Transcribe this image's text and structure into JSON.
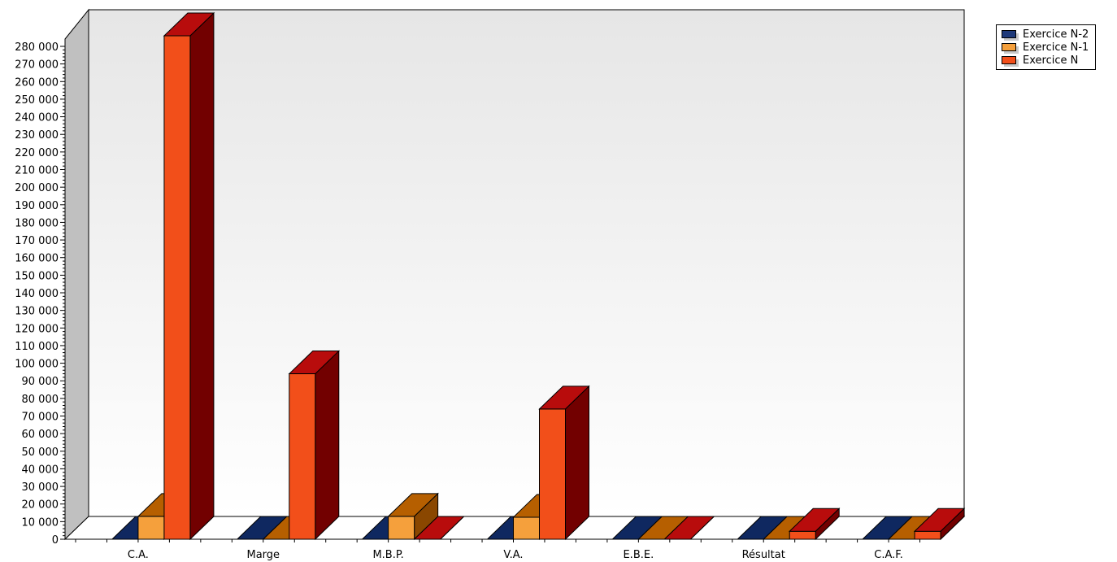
{
  "chart_data": {
    "type": "bar",
    "categories": [
      "C.A.",
      "Marge",
      "M.B.P.",
      "V.A.",
      "E.B.E.",
      "Résultat",
      "C.A.F."
    ],
    "series": [
      {
        "name": "Exercice N-2",
        "values": [
          0,
          0,
          0,
          0,
          0,
          0,
          0
        ],
        "color": "#1f3a7a"
      },
      {
        "name": "Exercice N-1",
        "values": [
          13000,
          0,
          13000,
          12500,
          0,
          -500,
          -500
        ],
        "color": "#f5a03c"
      },
      {
        "name": "Exercice N",
        "values": [
          286000,
          94000,
          0,
          74000,
          0,
          4500,
          4500
        ],
        "color": "#f24f1a"
      }
    ],
    "ylim": [
      0,
      280000
    ],
    "ytick_step": 10000,
    "yticks": [
      "0",
      "10 000",
      "20 000",
      "30 000",
      "40 000",
      "50 000",
      "60 000",
      "70 000",
      "80 000",
      "90 000",
      "100 000",
      "110 000",
      "120 000",
      "130 000",
      "140 000",
      "150 000",
      "160 000",
      "170 000",
      "180 000",
      "190 000",
      "200 000",
      "210 000",
      "220 000",
      "230 000",
      "240 000",
      "250 000",
      "260 000",
      "270 000",
      "280 000"
    ],
    "legend_position": "top-right",
    "three_d": true
  }
}
